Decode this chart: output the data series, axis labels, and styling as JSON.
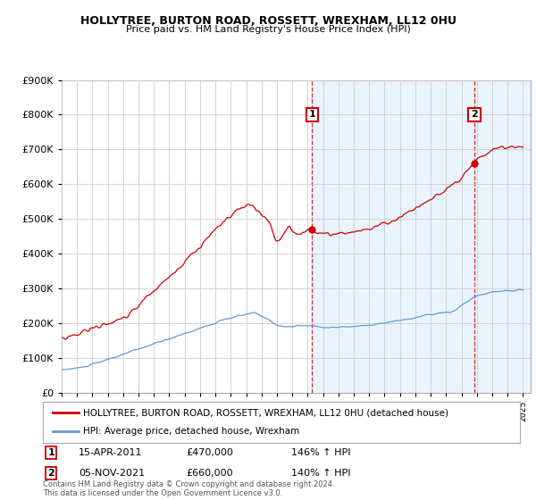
{
  "title": "HOLLYTREE, BURTON ROAD, ROSSETT, WREXHAM, LL12 0HU",
  "subtitle": "Price paid vs. HM Land Registry's House Price Index (HPI)",
  "legend_line1": "HOLLYTREE, BURTON ROAD, ROSSETT, WREXHAM, LL12 0HU (detached house)",
  "legend_line2": "HPI: Average price, detached house, Wrexham",
  "annotation1_label": "1",
  "annotation1_date": "15-APR-2011",
  "annotation1_price": "£470,000",
  "annotation1_hpi": "146% ↑ HPI",
  "annotation2_label": "2",
  "annotation2_date": "05-NOV-2021",
  "annotation2_price": "£660,000",
  "annotation2_hpi": "140% ↑ HPI",
  "footer": "Contains HM Land Registry data © Crown copyright and database right 2024.\nThis data is licensed under the Open Government Licence v3.0.",
  "sale1_year": 2011.29,
  "sale2_year": 2021.84,
  "sale1_price": 470000,
  "sale2_price": 660000,
  "red_color": "#cc0000",
  "blue_color": "#6699cc",
  "shade_color": "#ddeeff",
  "ylim": [
    0,
    900000
  ],
  "xlim_start": 1995,
  "xlim_end": 2025.5,
  "background_color": "#ffffff",
  "grid_color": "#cccccc"
}
